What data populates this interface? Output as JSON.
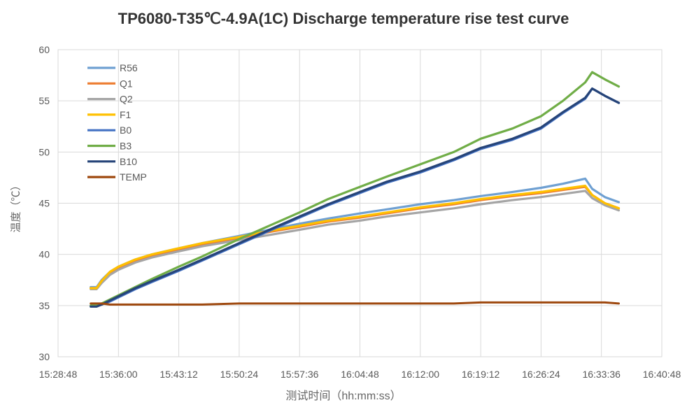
{
  "chart_data": {
    "type": "line",
    "title": "TP6080-T35℃-4.9A(1C) Discharge temperature rise test curve",
    "xlabel": "测试时间（hh:mm:ss）",
    "ylabel": "温度（℃）",
    "ylim": [
      30,
      60
    ],
    "y_ticks": [
      "30",
      "35",
      "40",
      "45",
      "50",
      "55",
      "60"
    ],
    "x_ticks": [
      "15:28:48",
      "15:36:00",
      "15:43:12",
      "15:50:24",
      "15:57:36",
      "16:04:48",
      "16:12:00",
      "16:19:12",
      "16:26:24",
      "16:33:36",
      "16:40:48"
    ],
    "grid": true,
    "legend_position": "top-left",
    "x": [
      "15:32:42",
      "15:33:24",
      "15:34:00",
      "15:35:00",
      "15:36:00",
      "15:38:00",
      "15:40:00",
      "15:43:12",
      "15:46:00",
      "15:50:24",
      "15:54:00",
      "15:57:36",
      "16:01:00",
      "16:04:48",
      "16:08:00",
      "16:12:00",
      "16:16:00",
      "16:19:12",
      "16:23:00",
      "16:26:24",
      "16:29:00",
      "16:31:40",
      "16:32:30",
      "16:34:00",
      "16:35:40"
    ],
    "series": [
      {
        "name": "R56",
        "color": "#6fa0d2",
        "values": [
          36.8,
          36.8,
          37.5,
          38.3,
          38.8,
          39.5,
          40.0,
          40.6,
          41.1,
          41.8,
          42.4,
          43.0,
          43.5,
          44.0,
          44.4,
          44.9,
          45.3,
          45.7,
          46.1,
          46.5,
          46.9,
          47.4,
          46.4,
          45.6,
          45.1
        ]
      },
      {
        "name": "Q1",
        "color": "#ed7d31",
        "values": [
          36.7,
          36.7,
          37.4,
          38.2,
          38.7,
          39.4,
          39.9,
          40.5,
          41.0,
          41.6,
          42.2,
          42.7,
          43.2,
          43.6,
          44.0,
          44.5,
          44.9,
          45.3,
          45.7,
          46.0,
          46.3,
          46.6,
          45.8,
          45.0,
          44.5
        ]
      },
      {
        "name": "Q2",
        "color": "#a5a5a5",
        "values": [
          36.6,
          36.6,
          37.2,
          38.0,
          38.5,
          39.2,
          39.7,
          40.3,
          40.8,
          41.4,
          41.9,
          42.4,
          42.9,
          43.3,
          43.7,
          44.1,
          44.5,
          44.9,
          45.3,
          45.6,
          45.9,
          46.2,
          45.5,
          44.8,
          44.3
        ]
      },
      {
        "name": "F1",
        "color": "#ffc000",
        "values": [
          36.7,
          36.7,
          37.4,
          38.3,
          38.8,
          39.5,
          40.0,
          40.6,
          41.1,
          41.7,
          42.3,
          42.8,
          43.3,
          43.7,
          44.1,
          44.6,
          45.0,
          45.4,
          45.8,
          46.1,
          46.4,
          46.7,
          45.8,
          45.0,
          44.5
        ]
      },
      {
        "name": "B0",
        "color": "#4472c4",
        "values": [
          35.0,
          35.0,
          35.1,
          35.4,
          35.8,
          36.6,
          37.3,
          38.4,
          39.4,
          41.0,
          42.3,
          43.6,
          44.8,
          46.0,
          47.0,
          48.0,
          49.2,
          50.3,
          51.2,
          52.3,
          53.8,
          55.2,
          56.2,
          55.5,
          54.8
        ]
      },
      {
        "name": "B3",
        "color": "#70ad47",
        "values": [
          35.0,
          35.0,
          35.2,
          35.6,
          36.0,
          36.8,
          37.6,
          38.8,
          39.8,
          41.5,
          42.8,
          44.1,
          45.4,
          46.6,
          47.6,
          48.8,
          50.0,
          51.3,
          52.3,
          53.5,
          55.0,
          56.8,
          57.8,
          57.1,
          56.4
        ]
      },
      {
        "name": "B10",
        "color": "#264478",
        "values": [
          34.9,
          34.9,
          35.1,
          35.5,
          35.9,
          36.7,
          37.4,
          38.5,
          39.5,
          41.1,
          42.4,
          43.7,
          44.9,
          46.1,
          47.1,
          48.1,
          49.3,
          50.4,
          51.3,
          52.4,
          53.9,
          55.3,
          56.2,
          55.5,
          54.8
        ]
      },
      {
        "name": "TEMP",
        "color": "#9e480e",
        "values": [
          35.2,
          35.2,
          35.2,
          35.1,
          35.1,
          35.1,
          35.1,
          35.1,
          35.1,
          35.2,
          35.2,
          35.2,
          35.2,
          35.2,
          35.2,
          35.2,
          35.2,
          35.3,
          35.3,
          35.3,
          35.3,
          35.3,
          35.3,
          35.3,
          35.2
        ]
      }
    ]
  }
}
